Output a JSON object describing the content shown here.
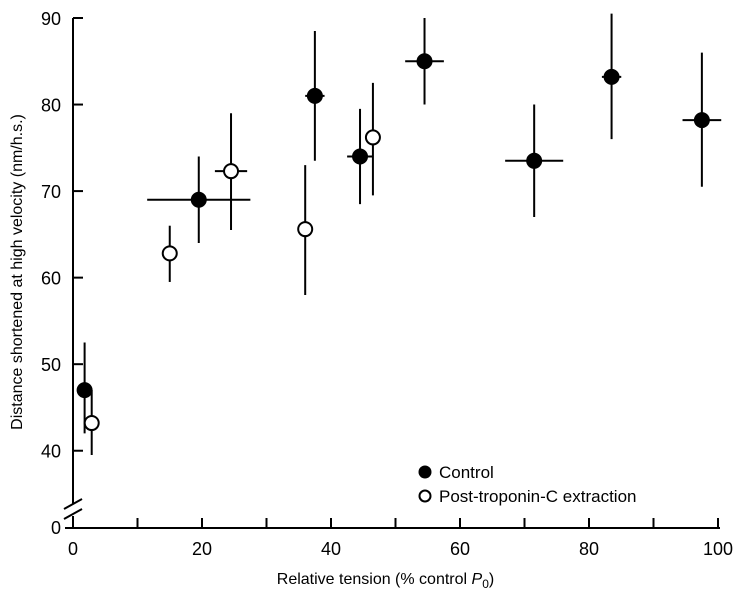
{
  "chart_data": {
    "type": "scatter",
    "title": "",
    "xlabel": "Relative tension (% control ",
    "xlabel_symbol": "P",
    "xlabel_subscript": "0",
    "xlabel_suffix": ")",
    "ylabel": "Distance shortened at high velocity (nm/h.s.)",
    "xlim": [
      0,
      100
    ],
    "ylim": [
      35,
      90
    ],
    "y_axis_break": true,
    "y_break_label": "0",
    "xticks": [
      0,
      20,
      40,
      60,
      80,
      100
    ],
    "xticks_minor": [
      10,
      30,
      50,
      70,
      90
    ],
    "yticks": [
      40,
      50,
      60,
      70,
      80,
      90
    ],
    "grid": false,
    "legend_position": "bottom-right",
    "colors": {
      "control": "#000000",
      "post": "#ffffff",
      "stroke": "#000000"
    },
    "series": [
      {
        "name": "Control",
        "marker": "filled-circle",
        "points": [
          {
            "x": 1.8,
            "y": 47.0,
            "xerr": 0,
            "yerr_low": 42.0,
            "yerr_high": 52.5
          },
          {
            "x": 19.5,
            "y": 69.0,
            "xerr_low": 11.5,
            "xerr_high": 27.5,
            "yerr_low": 64.0,
            "yerr_high": 74.0
          },
          {
            "x": 37.5,
            "y": 81.0,
            "xerr_low": 36.0,
            "xerr_high": 39.0,
            "yerr_low": 73.5,
            "yerr_high": 88.5
          },
          {
            "x": 44.5,
            "y": 74.0,
            "xerr_low": 42.5,
            "xerr_high": 46.5,
            "yerr_low": 68.5,
            "yerr_high": 79.5
          },
          {
            "x": 54.5,
            "y": 85.0,
            "xerr_low": 51.5,
            "xerr_high": 57.5,
            "yerr_low": 80.0,
            "yerr_high": 90.0
          },
          {
            "x": 71.5,
            "y": 73.5,
            "xerr_low": 67.0,
            "xerr_high": 76.0,
            "yerr_low": 67.0,
            "yerr_high": 80.0
          },
          {
            "x": 83.5,
            "y": 83.2,
            "xerr_low": 82.0,
            "xerr_high": 85.0,
            "yerr_low": 76.0,
            "yerr_high": 90.5
          },
          {
            "x": 97.5,
            "y": 78.2,
            "xerr_low": 94.5,
            "xerr_high": 100.5,
            "yerr_low": 70.5,
            "yerr_high": 86.0
          }
        ]
      },
      {
        "name": "Post-troponin-C extraction",
        "marker": "open-circle",
        "points": [
          {
            "x": 2.9,
            "y": 43.2,
            "xerr": 0,
            "yerr_low": 39.5,
            "yerr_high": 47.0
          },
          {
            "x": 15.0,
            "y": 62.8,
            "xerr": 0,
            "yerr_low": 59.5,
            "yerr_high": 66.0
          },
          {
            "x": 24.5,
            "y": 72.3,
            "xerr_low": 22.0,
            "xerr_high": 27.0,
            "yerr_low": 65.5,
            "yerr_high": 79.0
          },
          {
            "x": 36.0,
            "y": 65.6,
            "xerr": 0,
            "yerr_low": 58.0,
            "yerr_high": 73.0
          },
          {
            "x": 46.5,
            "y": 76.2,
            "xerr": 0,
            "yerr_low": 69.5,
            "yerr_high": 82.5
          }
        ]
      }
    ]
  }
}
